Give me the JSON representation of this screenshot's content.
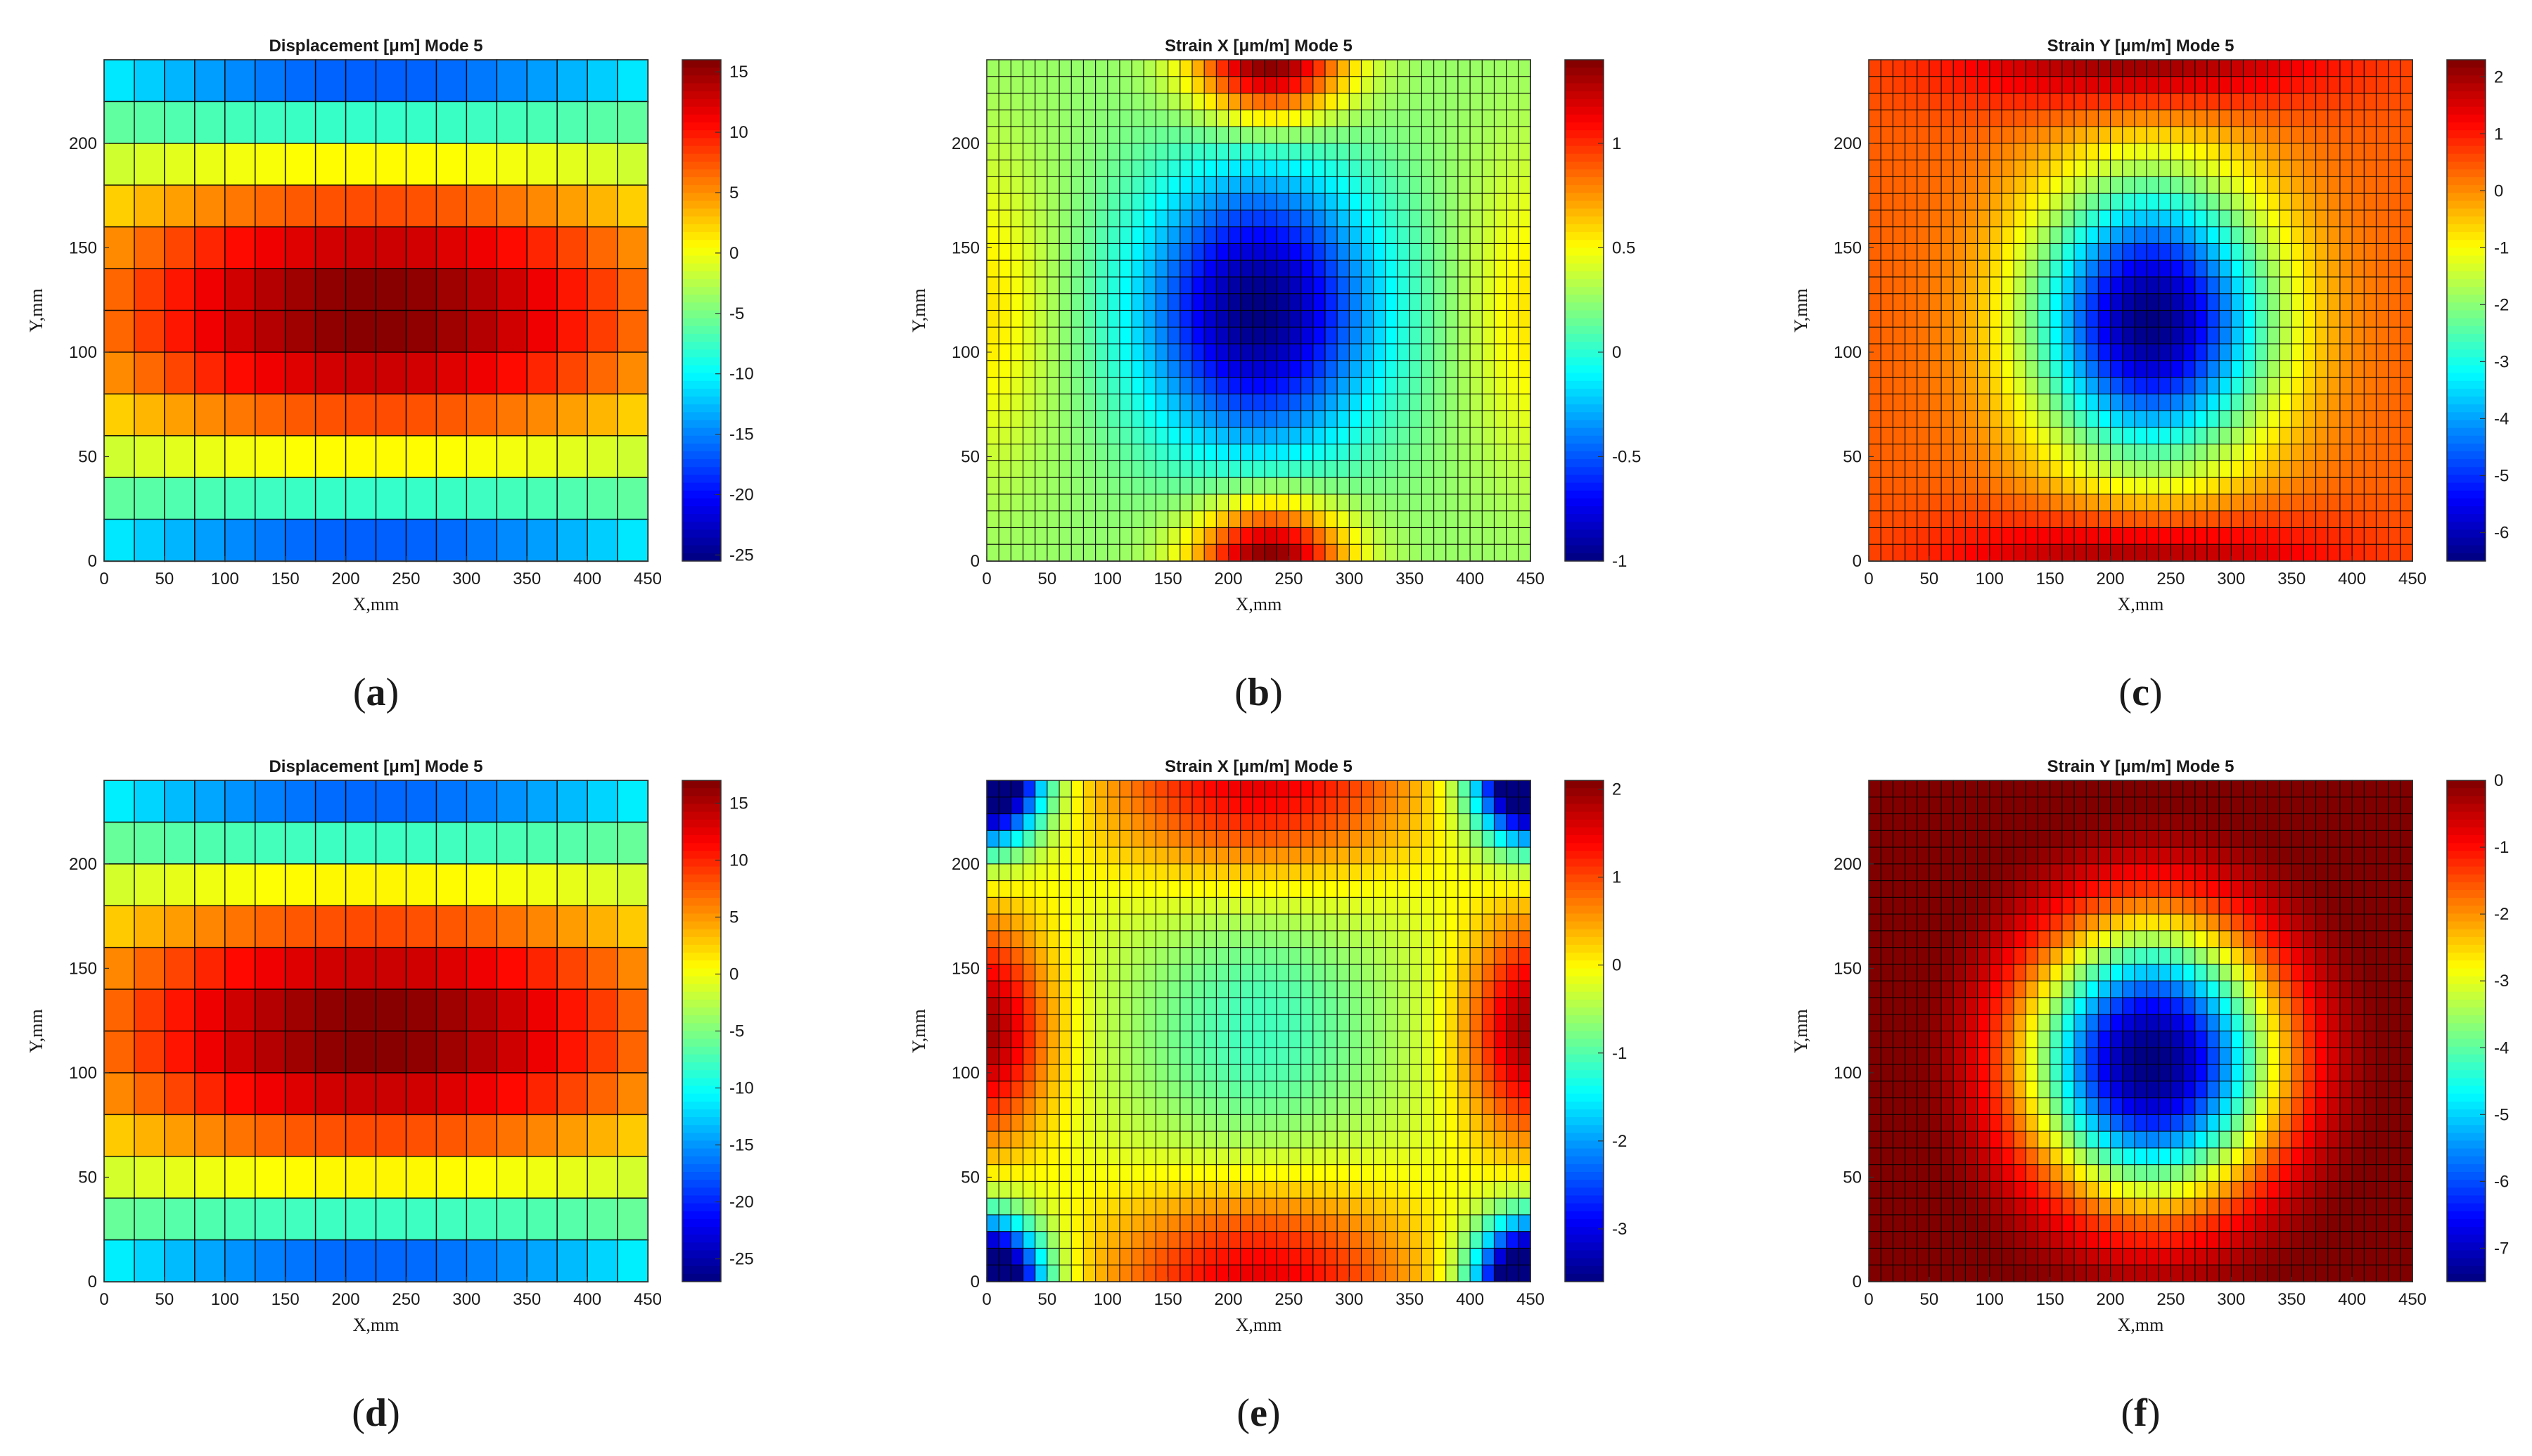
{
  "figure": {
    "panels": [
      "a",
      "b",
      "c",
      "d",
      "e",
      "f"
    ]
  },
  "chart_data": [
    {
      "id": "a",
      "type": "heatmap",
      "title": "Displacement [μm] Mode 5",
      "xlabel": "X,mm",
      "ylabel": "Y,mm",
      "xlim": [
        0,
        450
      ],
      "ylim": [
        0,
        240
      ],
      "xticks": [
        0,
        50,
        100,
        150,
        200,
        250,
        300,
        350,
        400,
        450
      ],
      "yticks": [
        0,
        50,
        100,
        150,
        200
      ],
      "colorbar": {
        "colormap": "jet",
        "range": [
          -25.5,
          16
        ],
        "ticks": [
          -25,
          -20,
          -15,
          -10,
          -5,
          0,
          5,
          10,
          15
        ]
      },
      "grid": {
        "nx": 18,
        "ny": 12
      },
      "field": {
        "kind": "plate_bending",
        "min": -25,
        "max": 16,
        "pos_rows": [
          0.3,
          0.7
        ],
        "neg_rows": 0.15,
        "pos_peak_center": [
          0.52,
          0.48
        ]
      }
    },
    {
      "id": "b",
      "type": "heatmap",
      "title": "Strain X [μm/m] Mode 5",
      "xlabel": "X,mm",
      "ylabel": "Y,mm",
      "xlim": [
        0,
        450
      ],
      "ylim": [
        0,
        240
      ],
      "xticks": [
        0,
        50,
        100,
        150,
        200,
        250,
        300,
        350,
        400,
        450
      ],
      "yticks": [
        0,
        50,
        100,
        150,
        200
      ],
      "colorbar": {
        "colormap": "jet",
        "range": [
          -1,
          1.4
        ],
        "ticks": [
          -1,
          -0.5,
          0,
          0.5,
          1
        ]
      },
      "grid": {
        "nx": 45,
        "ny": 30
      },
      "field": {
        "kind": "strain_x",
        "min": -1,
        "max": 1.4
      }
    },
    {
      "id": "c",
      "type": "heatmap",
      "title": "Strain Y [μm/m] Mode 5",
      "xlabel": "X,mm",
      "ylabel": "Y,mm",
      "xlim": [
        0,
        450
      ],
      "ylim": [
        0,
        240
      ],
      "xticks": [
        0,
        50,
        100,
        150,
        200,
        250,
        300,
        350,
        400,
        450
      ],
      "yticks": [
        0,
        50,
        100,
        150,
        200
      ],
      "colorbar": {
        "colormap": "jet",
        "range": [
          -6.5,
          2.3
        ],
        "ticks": [
          -6,
          -5,
          -4,
          -3,
          -2,
          -1,
          0,
          1,
          2
        ]
      },
      "grid": {
        "nx": 45,
        "ny": 30
      },
      "field": {
        "kind": "strain_y",
        "min": -6.5,
        "max": 2.3
      }
    },
    {
      "id": "d",
      "type": "heatmap",
      "title": "Displacement [μm] Mode 5",
      "xlabel": "X,mm",
      "ylabel": "Y,mm",
      "xlim": [
        0,
        450
      ],
      "ylim": [
        0,
        240
      ],
      "xticks": [
        0,
        50,
        100,
        150,
        200,
        250,
        300,
        350,
        400,
        450
      ],
      "yticks": [
        0,
        50,
        100,
        150,
        200
      ],
      "colorbar": {
        "colormap": "jet",
        "range": [
          -27,
          17
        ],
        "ticks": [
          -25,
          -20,
          -15,
          -10,
          -5,
          0,
          5,
          10,
          15
        ]
      },
      "grid": {
        "nx": 18,
        "ny": 12
      },
      "field": {
        "kind": "plate_bending",
        "min": -26,
        "max": 17
      }
    },
    {
      "id": "e",
      "type": "heatmap",
      "title": "Strain X [μm/m] Mode 5",
      "xlabel": "X,mm",
      "ylabel": "Y,mm",
      "xlim": [
        0,
        450
      ],
      "ylim": [
        0,
        240
      ],
      "xticks": [
        0,
        50,
        100,
        150,
        200,
        250,
        300,
        350,
        400,
        450
      ],
      "yticks": [
        0,
        50,
        100,
        150,
        200
      ],
      "colorbar": {
        "colormap": "jet",
        "range": [
          -3.6,
          2.1
        ],
        "ticks": [
          -3,
          -2,
          -1,
          0,
          1,
          2
        ]
      },
      "grid": {
        "nx": 45,
        "ny": 30
      },
      "field": {
        "kind": "strain_x_fit",
        "min": -3.6,
        "max": 2.1
      }
    },
    {
      "id": "f",
      "type": "heatmap",
      "title": "Strain Y [μm/m] Mode 5",
      "xlabel": "X,mm",
      "ylabel": "Y,mm",
      "xlim": [
        0,
        450
      ],
      "ylim": [
        0,
        240
      ],
      "xticks": [
        0,
        50,
        100,
        150,
        200,
        250,
        300,
        350,
        400,
        450
      ],
      "yticks": [
        0,
        50,
        100,
        150,
        200
      ],
      "colorbar": {
        "colormap": "jet",
        "range": [
          -7.5,
          0
        ],
        "ticks": [
          -7,
          -6,
          -5,
          -4,
          -3,
          -2,
          -1,
          0
        ]
      },
      "grid": {
        "nx": 45,
        "ny": 30
      },
      "field": {
        "kind": "strain_y_fit",
        "min": -7.5,
        "max": 0
      }
    }
  ]
}
